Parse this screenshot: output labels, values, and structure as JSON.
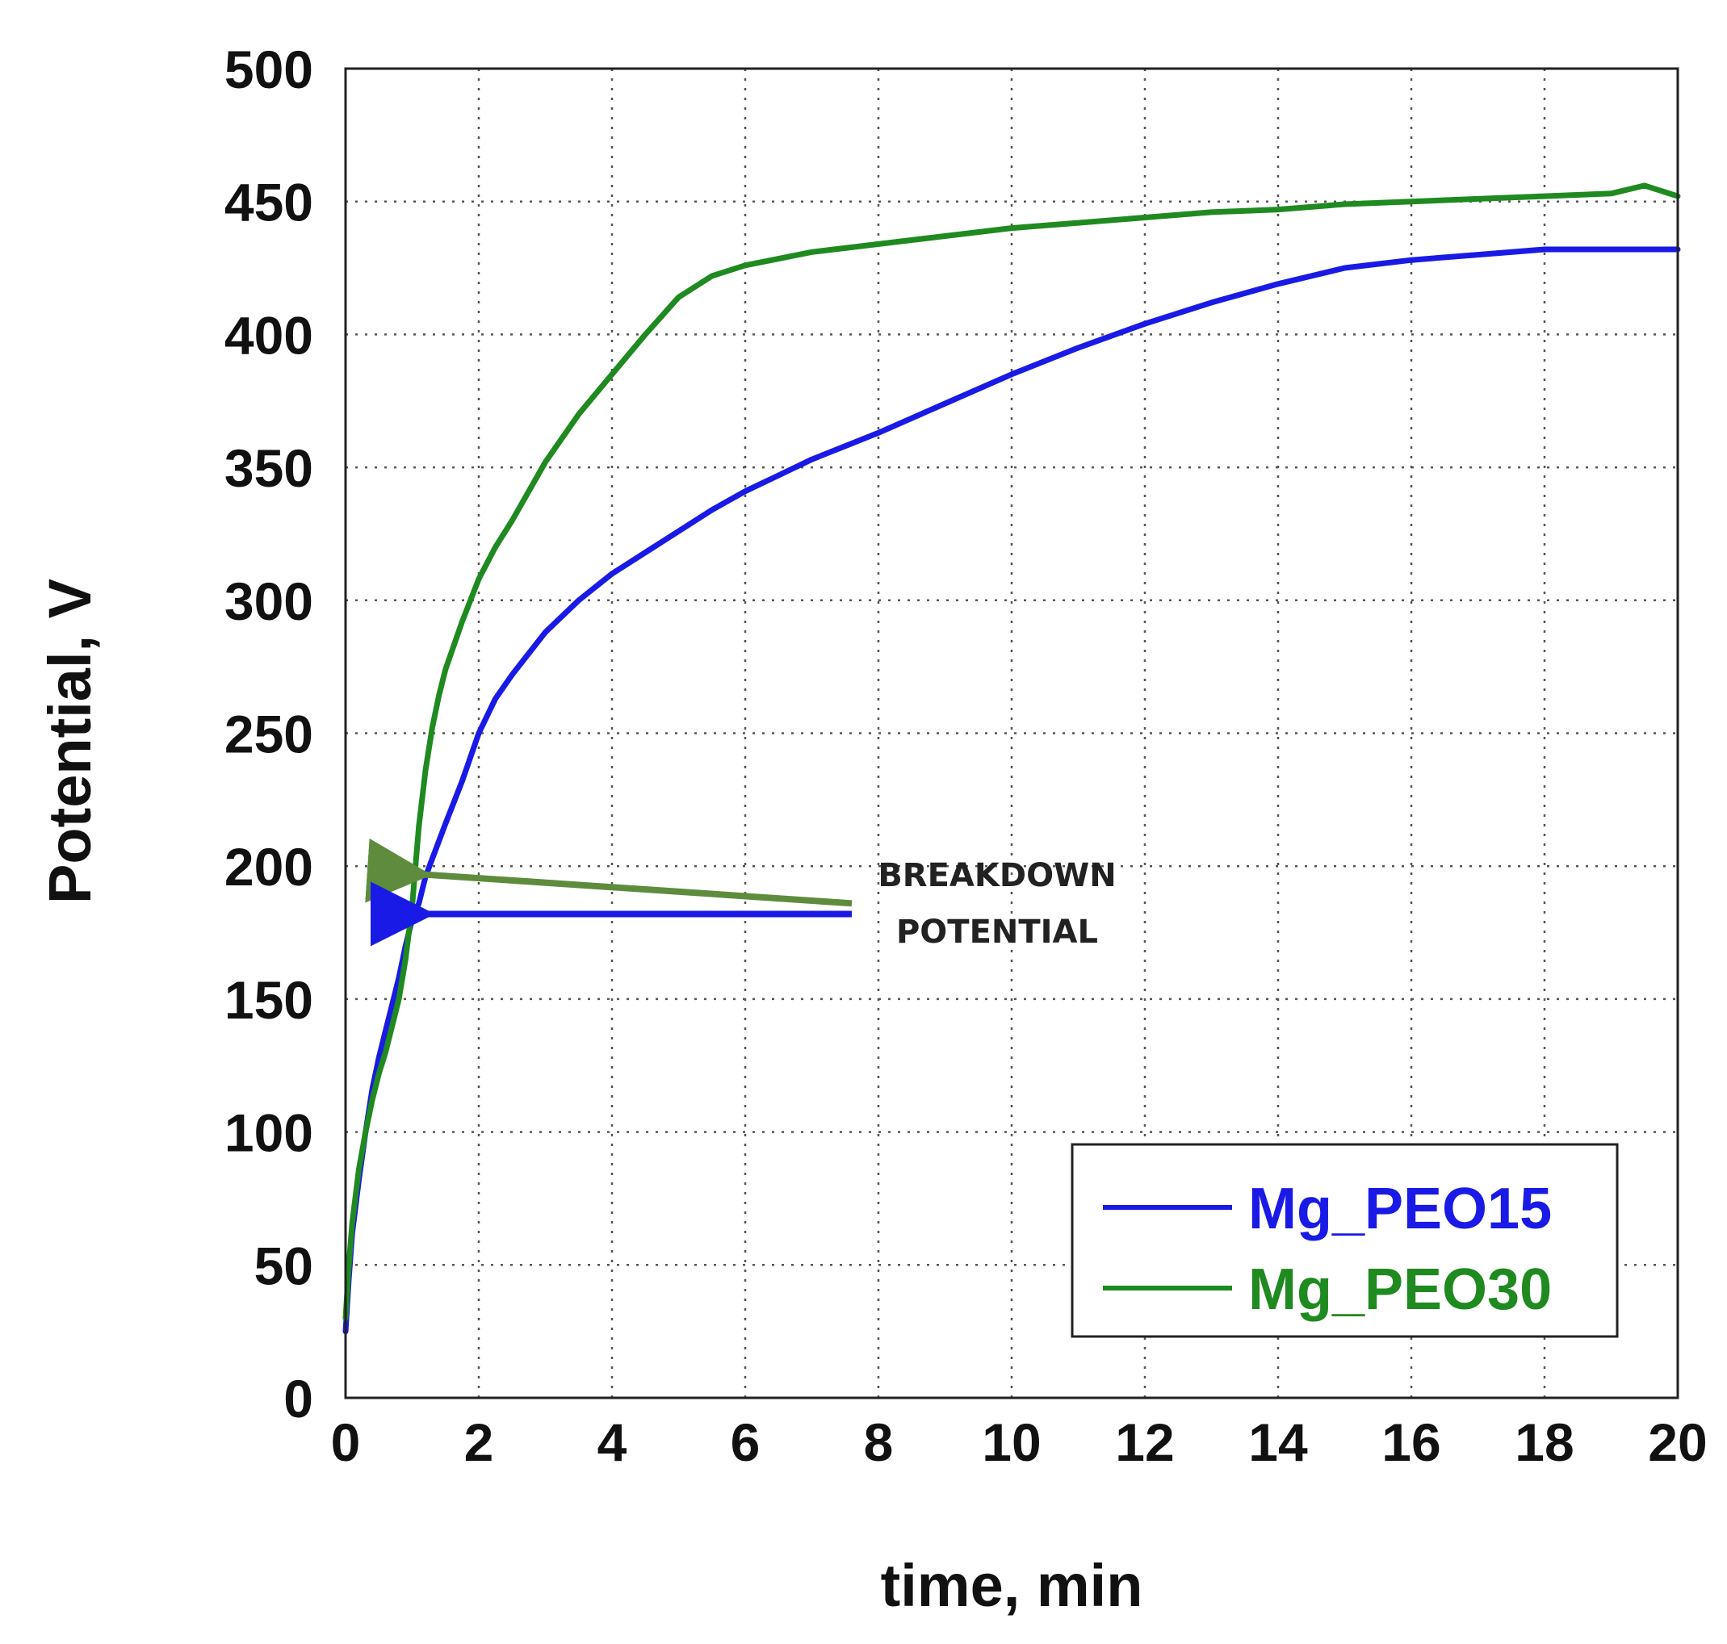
{
  "chart_data": {
    "type": "line",
    "title": "",
    "xlabel": "time, min",
    "ylabel": "Potential, V",
    "xlim": [
      0,
      20
    ],
    "ylim": [
      0,
      500
    ],
    "xticks": [
      0,
      2,
      4,
      6,
      8,
      10,
      12,
      14,
      16,
      18,
      20
    ],
    "yticks": [
      0,
      50,
      100,
      150,
      200,
      250,
      300,
      350,
      400,
      450,
      500
    ],
    "grid": true,
    "legend_position": "bottom-right",
    "series": [
      {
        "name": "Mg_PEO15",
        "color": "#1a1ae6",
        "x": [
          0,
          0.05,
          0.1,
          0.2,
          0.3,
          0.4,
          0.5,
          0.6,
          0.7,
          0.8,
          0.9,
          1.0,
          1.1,
          1.2,
          1.35,
          1.5,
          1.75,
          2.0,
          2.25,
          2.5,
          3.0,
          3.5,
          4.0,
          4.5,
          5.0,
          5.5,
          6.0,
          6.5,
          7.0,
          7.5,
          8.0,
          9.0,
          10.0,
          11.0,
          12.0,
          13.0,
          14.0,
          15.0,
          16.0,
          17.0,
          18.0,
          19.0,
          20.0
        ],
        "y": [
          25,
          45,
          62,
          82,
          100,
          116,
          128,
          138,
          148,
          158,
          170,
          180,
          186,
          196,
          206,
          216,
          232,
          250,
          263,
          272,
          288,
          300,
          310,
          318,
          326,
          334,
          341,
          347,
          353,
          358,
          363,
          374,
          385,
          395,
          404,
          412,
          419,
          425,
          428,
          430,
          432,
          432,
          432
        ]
      },
      {
        "name": "Mg_PEO30",
        "color": "#1f8a1f",
        "x": [
          0,
          0.05,
          0.1,
          0.2,
          0.3,
          0.4,
          0.5,
          0.6,
          0.7,
          0.8,
          0.9,
          1.0,
          1.05,
          1.1,
          1.2,
          1.3,
          1.4,
          1.5,
          1.75,
          2.0,
          2.25,
          2.5,
          3.0,
          3.5,
          4.0,
          4.5,
          5.0,
          5.5,
          6.0,
          7.0,
          8.0,
          9.0,
          10.0,
          11.0,
          12.0,
          13.0,
          14.0,
          15.0,
          16.0,
          17.0,
          18.0,
          19.0,
          19.5,
          20.0
        ],
        "y": [
          30,
          50,
          66,
          86,
          100,
          112,
          122,
          130,
          140,
          150,
          165,
          185,
          200,
          215,
          236,
          252,
          264,
          274,
          292,
          308,
          320,
          330,
          352,
          370,
          385,
          400,
          414,
          422,
          426,
          431,
          434,
          437,
          440,
          442,
          444,
          446,
          447,
          449,
          450,
          451,
          452,
          453,
          456,
          452
        ]
      }
    ],
    "annotations": [
      {
        "text_line1": "BREAKDOWN",
        "text_line2": "POTENTIAL",
        "arrows": [
          {
            "series": "Mg_PEO30",
            "color": "#5e8c3c",
            "from": [
              7.6,
              186
            ],
            "to": [
              1.1,
              197
            ]
          },
          {
            "series": "Mg_PEO15",
            "color": "#1a1ae6",
            "from": [
              7.6,
              182
            ],
            "to": [
              1.15,
              182
            ]
          }
        ]
      }
    ]
  }
}
